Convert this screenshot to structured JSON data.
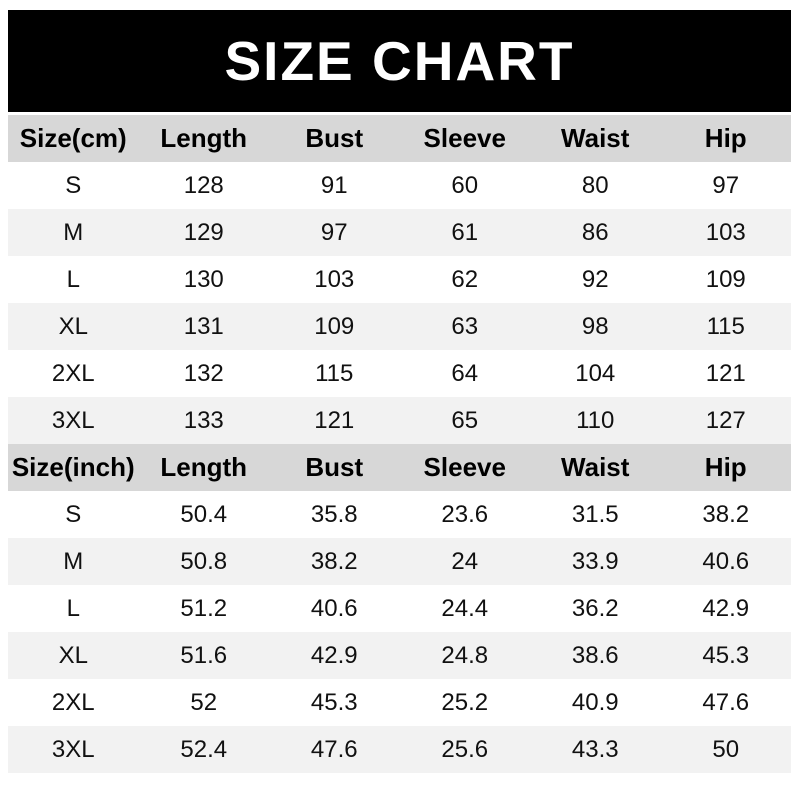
{
  "title": "SIZE CHART",
  "colors": {
    "banner_bg": "#000000",
    "banner_text": "#ffffff",
    "header_row_bg": "#d7d7d7",
    "header_text": "#000000",
    "stripe_row_bg": "#f2f2f2",
    "white_row_bg": "#ffffff",
    "text": "#111111"
  },
  "tables": [
    {
      "unit": "cm",
      "columns": [
        "Size(cm)",
        "Length",
        "Bust",
        "Sleeve",
        "Waist",
        "Hip"
      ],
      "rows": [
        [
          "S",
          128,
          91,
          60,
          80,
          97
        ],
        [
          "M",
          129,
          97,
          61,
          86,
          103
        ],
        [
          "L",
          130,
          103,
          62,
          92,
          109
        ],
        [
          "XL",
          131,
          109,
          63,
          98,
          115
        ],
        [
          "2XL",
          132,
          115,
          64,
          104,
          121
        ],
        [
          "3XL",
          133,
          121,
          65,
          110,
          127
        ]
      ]
    },
    {
      "unit": "inch",
      "columns": [
        "Size(inch)",
        "Length",
        "Bust",
        "Sleeve",
        "Waist",
        "Hip"
      ],
      "rows": [
        [
          "S",
          50.4,
          35.8,
          23.6,
          31.5,
          38.2
        ],
        [
          "M",
          50.8,
          38.2,
          24,
          33.9,
          40.6
        ],
        [
          "L",
          51.2,
          40.6,
          24.4,
          36.2,
          42.9
        ],
        [
          "XL",
          51.6,
          42.9,
          24.8,
          38.6,
          45.3
        ],
        [
          "2XL",
          52,
          45.3,
          25.2,
          40.9,
          47.6
        ],
        [
          "3XL",
          52.4,
          47.6,
          25.6,
          43.3,
          50
        ]
      ]
    }
  ]
}
